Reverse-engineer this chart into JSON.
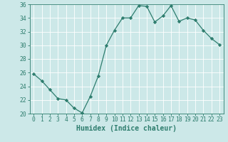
{
  "x": [
    0,
    1,
    2,
    3,
    4,
    5,
    6,
    7,
    8,
    9,
    10,
    11,
    12,
    13,
    14,
    15,
    16,
    17,
    18,
    19,
    20,
    21,
    22,
    23
  ],
  "y": [
    25.8,
    24.8,
    23.5,
    22.2,
    22.0,
    20.8,
    20.1,
    22.5,
    25.5,
    30.0,
    32.2,
    34.0,
    34.0,
    35.8,
    35.7,
    33.4,
    34.3,
    35.8,
    33.5,
    34.0,
    33.7,
    32.2,
    31.0,
    30.1
  ],
  "xlabel": "Humidex (Indice chaleur)",
  "ylim": [
    20,
    36
  ],
  "xlim": [
    -0.5,
    23.5
  ],
  "yticks": [
    20,
    22,
    24,
    26,
    28,
    30,
    32,
    34,
    36
  ],
  "xticks": [
    0,
    1,
    2,
    3,
    4,
    5,
    6,
    7,
    8,
    9,
    10,
    11,
    12,
    13,
    14,
    15,
    16,
    17,
    18,
    19,
    20,
    21,
    22,
    23
  ],
  "line_color": "#2e7d6e",
  "marker": "D",
  "marker_size": 2.2,
  "bg_color": "#cce8e8",
  "grid_color": "#ffffff",
  "axis_color": "#2e7d6e",
  "tick_label_color": "#2e7d6e",
  "xlabel_color": "#2e7d6e",
  "xlabel_fontsize": 7,
  "tick_fontsize": 5.8,
  "line_width": 0.9
}
